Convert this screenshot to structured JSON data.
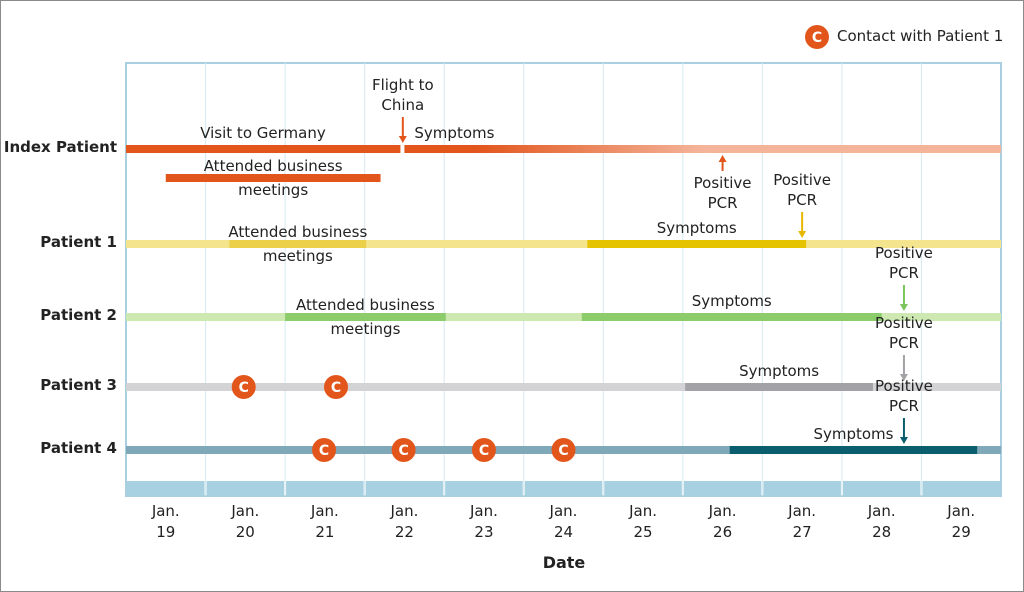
{
  "chart_data": {
    "type": "timeline",
    "x_label": "Date",
    "xlim": [
      18.5,
      29.5
    ],
    "xticks": [
      {
        "value": 19,
        "label": "Jan. 19"
      },
      {
        "value": 20,
        "label": "Jan. 20"
      },
      {
        "value": 21,
        "label": "Jan. 21"
      },
      {
        "value": 22,
        "label": "Jan. 22"
      },
      {
        "value": 23,
        "label": "Jan. 23"
      },
      {
        "value": 24,
        "label": "Jan. 24"
      },
      {
        "value": 25,
        "label": "Jan. 25"
      },
      {
        "value": 26,
        "label": "Jan. 26"
      },
      {
        "value": 27,
        "label": "Jan. 27"
      },
      {
        "value": 28,
        "label": "Jan. 28"
      },
      {
        "value": 29,
        "label": "Jan. 29"
      }
    ],
    "legend": {
      "symbol": "C",
      "label": "Contact with Patient 1",
      "color": "#e2561c"
    },
    "rows": [
      {
        "name": "Index Patient",
        "tracks": [
          [
            {
              "start": 18.5,
              "end": 21.95,
              "color": "#e2561c",
              "label": "Visit to Germany"
            },
            {
              "start": 22.0,
              "end": 29.5,
              "color": "#e2561c",
              "end_color": "#f4b49a",
              "label": "Symptoms"
            }
          ],
          [
            {
              "start": 19.0,
              "end": 21.7,
              "color": "#e2561c",
              "label": "Attended business meetings"
            }
          ]
        ],
        "events": [
          {
            "x": 21.98,
            "label": "Flight to China",
            "color": "#e2561c",
            "position": "above"
          },
          {
            "x": 26.0,
            "label": "Positive PCR",
            "color": "#e2561c",
            "position": "below"
          }
        ],
        "contacts": []
      },
      {
        "name": "Patient 1",
        "tracks": [
          [
            {
              "start": 18.5,
              "end": 29.5,
              "color": "#f4e48e"
            },
            {
              "start": 19.8,
              "end": 21.52,
              "color": "#ecd04a",
              "label": "Attended business meetings"
            },
            {
              "start": 24.3,
              "end": 27.05,
              "color": "#e6c300",
              "label": "Symptoms"
            }
          ]
        ],
        "events": [
          {
            "x": 27.0,
            "label": "Positive PCR",
            "color": "#e6b800",
            "position": "above"
          }
        ],
        "contacts": []
      },
      {
        "name": "Patient 2",
        "tracks": [
          [
            {
              "start": 18.5,
              "end": 29.5,
              "color": "#cde8b0"
            },
            {
              "start": 20.5,
              "end": 22.52,
              "color": "#8ccc6a",
              "label": "Attended business meetings"
            },
            {
              "start": 24.23,
              "end": 28.0,
              "color": "#8ccc6a",
              "label": "Symptoms"
            }
          ]
        ],
        "events": [
          {
            "x": 28.28,
            "label": "Positive PCR",
            "color": "#7cc45a",
            "position": "above"
          }
        ],
        "contacts": []
      },
      {
        "name": "Patient 3",
        "tracks": [
          [
            {
              "start": 18.5,
              "end": 29.5,
              "color": "#d3d3d6"
            },
            {
              "start": 25.53,
              "end": 27.89,
              "color": "#a2a2a7",
              "label": "Symptoms"
            }
          ]
        ],
        "events": [
          {
            "x": 28.28,
            "label": "Positive PCR",
            "color": "#a2a2a7",
            "position": "above"
          }
        ],
        "contacts": [
          19.98,
          21.14
        ]
      },
      {
        "name": "Patient 4",
        "tracks": [
          [
            {
              "start": 18.5,
              "end": 29.5,
              "color": "#7fa9b8"
            },
            {
              "start": 26.09,
              "end": 29.2,
              "color": "#0b5e6e",
              "label": "Symptoms"
            }
          ]
        ],
        "events": [
          {
            "x": 28.28,
            "label": "Positive PCR",
            "color": "#0b5e6e",
            "position": "above"
          }
        ],
        "contacts": [
          20.99,
          21.99,
          23.0,
          24.0
        ]
      }
    ]
  }
}
